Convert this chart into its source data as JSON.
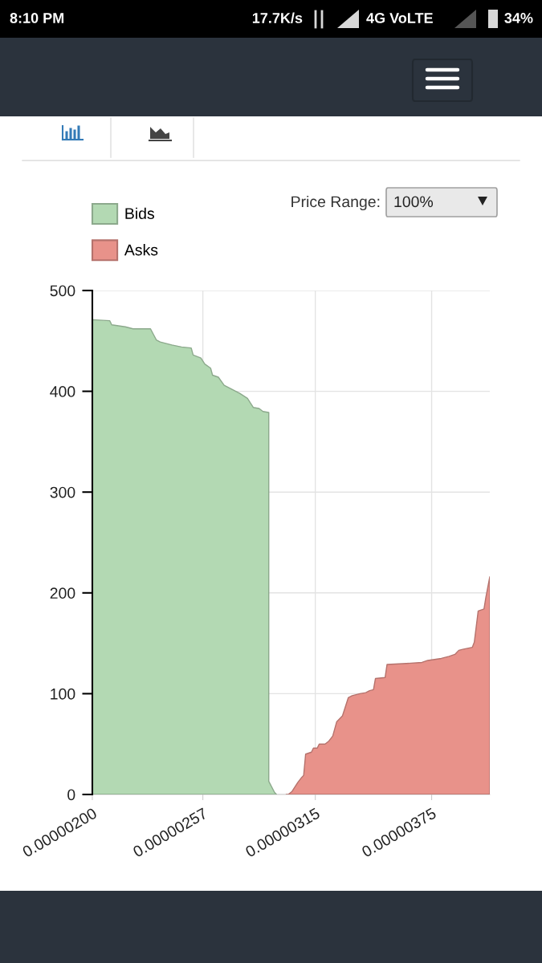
{
  "chart_data": {
    "type": "area",
    "series": [
      {
        "name": "Bids",
        "color": "#b3d9b3",
        "x": [
          2e-06,
          2.09e-06,
          2.1e-06,
          2.17e-06,
          2.21e-06,
          2.3e-06,
          2.33e-06,
          2.35e-06,
          2.41e-06,
          2.46e-06,
          2.51e-06,
          2.52e-06,
          2.56e-06,
          2.58e-06,
          2.61e-06,
          2.62e-06,
          2.65e-06,
          2.68e-06,
          2.71e-06,
          2.76e-06,
          2.8e-06,
          2.83e-06,
          2.86e-06,
          2.88e-06,
          2.91e-06,
          2.91e-06,
          2.94e-06,
          2.95e-06
        ],
        "values": [
          471,
          470,
          466,
          464,
          462,
          462,
          451,
          449,
          446,
          444,
          443,
          436,
          433,
          427,
          423,
          416,
          414,
          406,
          403,
          398,
          393,
          384,
          383,
          380,
          379,
          13,
          2,
          0
        ]
      },
      {
        "name": "Asks",
        "color": "#e8928a",
        "x": [
          3e-06,
          3.01e-06,
          3.03e-06,
          3.06e-06,
          3.08e-06,
          3.09e-06,
          3.1e-06,
          3.13e-06,
          3.14e-06,
          3.16e-06,
          3.17e-06,
          3.2e-06,
          3.22e-06,
          3.24e-06,
          3.26e-06,
          3.28e-06,
          3.29e-06,
          3.32e-06,
          3.34e-06,
          3.38e-06,
          3.41e-06,
          3.43e-06,
          3.45e-06,
          3.46e-06,
          3.51e-06,
          3.52e-06,
          3.62e-06,
          3.7e-06,
          3.73e-06,
          3.8e-06,
          3.84e-06,
          3.87e-06,
          3.89e-06,
          3.91e-06,
          3.96e-06,
          3.97e-06,
          3.99e-06,
          4.02e-06,
          4.03e-06,
          4.05e-06
        ],
        "values": [
          0,
          0,
          3,
          12,
          17,
          19,
          40,
          42,
          46,
          46,
          50,
          50,
          53,
          58,
          72,
          76,
          78,
          96,
          98,
          100,
          101,
          103,
          104,
          115,
          116,
          129,
          130,
          131,
          133,
          135,
          137,
          139,
          143,
          144,
          146,
          151,
          182,
          184,
          196,
          216
        ]
      }
    ],
    "xlim": [
      2e-06,
      4.05e-06
    ],
    "xticks": [
      {
        "value": 2e-06,
        "label": "0.00000200"
      },
      {
        "value": 2.57e-06,
        "label": "0.00000257"
      },
      {
        "value": 3.15e-06,
        "label": "0.00000315"
      },
      {
        "value": 3.75e-06,
        "label": "0.00000375"
      }
    ],
    "ylim": [
      0,
      500
    ],
    "yticks": [
      0,
      100,
      200,
      300,
      400,
      500
    ],
    "grid": true,
    "legend": "top left",
    "annotations": [
      "Price Range:",
      "100%",
      "8:10 PM",
      "17.7K/s",
      "4G VoLTE",
      "34%"
    ]
  }
}
